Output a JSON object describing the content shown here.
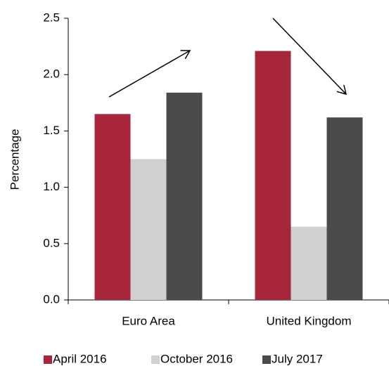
{
  "chart_data": {
    "type": "bar",
    "y_label": "Percentage",
    "categories": [
      "Euro Area",
      "United Kingdom"
    ],
    "series": [
      {
        "name": "April 2016",
        "color": "#a8263b",
        "values": [
          1.65,
          2.21
        ]
      },
      {
        "name": "October 2016",
        "color": "#d0d0d0",
        "values": [
          1.25,
          0.65
        ]
      },
      {
        "name": "July 2017",
        "color": "#4b4b4b",
        "values": [
          1.84,
          1.62
        ]
      }
    ],
    "ylim": [
      0,
      2.5
    ],
    "yticks": [
      {
        "value": 0,
        "label": "0.0"
      },
      0.5,
      {
        "value": 1,
        "label": "1.0"
      },
      1.5,
      {
        "value": 2,
        "label": "2.0"
      },
      2.5
    ],
    "grid": false,
    "legend": "bottom"
  }
}
